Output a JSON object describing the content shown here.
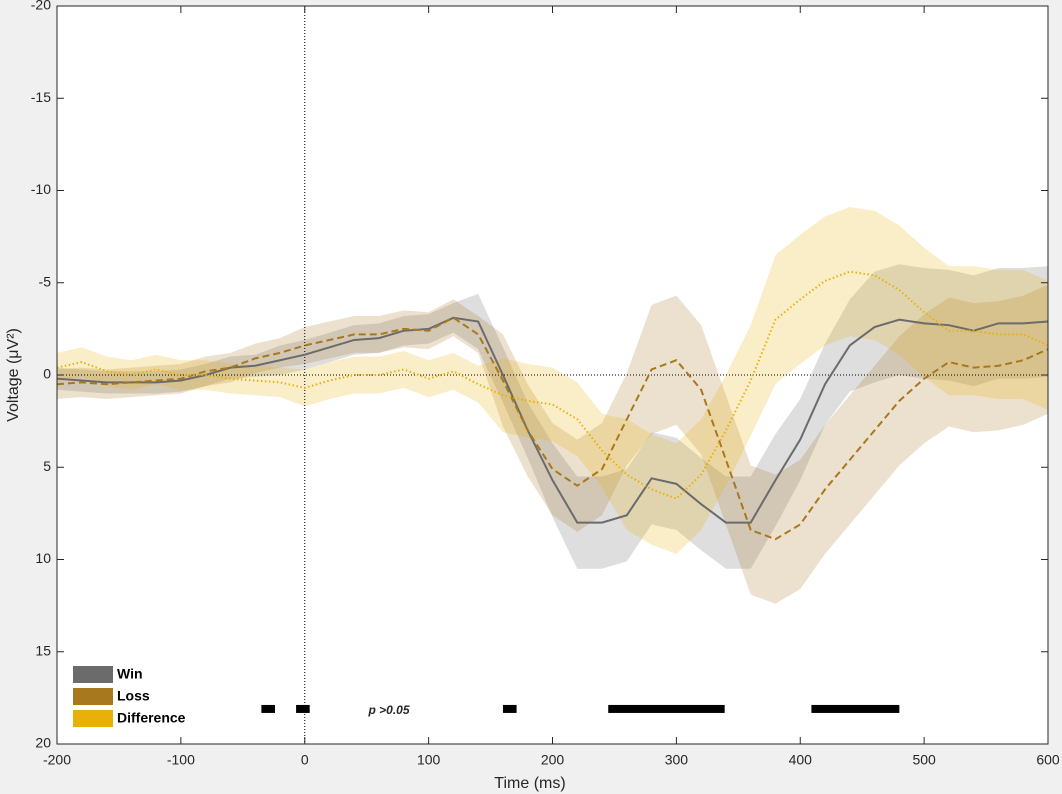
{
  "chart_data": {
    "type": "line",
    "xlabel": "Time (ms)",
    "ylabel": "Voltage (μV²)",
    "xlim": [
      -200,
      600
    ],
    "ylim": [
      20,
      -20
    ],
    "xticks": [
      -200,
      -100,
      0,
      100,
      200,
      300,
      400,
      500,
      600
    ],
    "yticks": [
      -20,
      -15,
      -10,
      -5,
      0,
      5,
      10,
      15,
      20
    ],
    "legend": "lower-left",
    "vlines": [
      0
    ],
    "hlines": [
      0
    ],
    "x": [
      -200,
      -180,
      -160,
      -140,
      -120,
      -100,
      -80,
      -60,
      -40,
      -20,
      0,
      20,
      40,
      60,
      80,
      100,
      120,
      140,
      160,
      180,
      200,
      220,
      240,
      260,
      280,
      300,
      320,
      340,
      360,
      380,
      400,
      420,
      440,
      460,
      480,
      500,
      520,
      540,
      560,
      580,
      600
    ],
    "series": [
      {
        "name": "Win",
        "color": "#6b6b6b",
        "dash": "solid",
        "values": [
          0.2,
          0.3,
          0.4,
          0.4,
          0.4,
          0.3,
          0,
          -0.4,
          -0.5,
          -0.8,
          -1.1,
          -1.5,
          -1.9,
          -2.0,
          -2.4,
          -2.5,
          -3.1,
          -2.9,
          0,
          3,
          5.7,
          8.0,
          8.0,
          7.6,
          5.6,
          5.9,
          7.0,
          8.0,
          8.0,
          5.7,
          3.5,
          0.5,
          -1.6,
          -2.6,
          -3.0,
          -2.8,
          -2.7,
          -2.4,
          -2.8,
          -2.8,
          -2.9
        ],
        "band_low": [
          -0.4,
          -0.3,
          -0.2,
          -0.2,
          -0.2,
          -0.3,
          -0.6,
          -1.0,
          -1.1,
          -1.6,
          -1.9,
          -2.3,
          -2.7,
          -2.8,
          -3.2,
          -3.3,
          -3.9,
          -4.4,
          -1.5,
          1.5,
          3.7,
          5.5,
          5.5,
          5.1,
          3.1,
          3.4,
          4.5,
          5.5,
          5.5,
          3.2,
          1.3,
          -1.7,
          -4.1,
          -5.6,
          -6.0,
          -5.8,
          -5.7,
          -5.4,
          -5.8,
          -5.8,
          -5.9
        ],
        "band_high": [
          0.8,
          0.9,
          1.0,
          1.0,
          1.0,
          0.9,
          0.6,
          0.2,
          0.1,
          0.0,
          -0.3,
          -0.7,
          -1.1,
          -1.2,
          -1.6,
          -1.7,
          -2.3,
          -1.4,
          1.5,
          4.5,
          7.7,
          10.5,
          10.5,
          10.1,
          8.1,
          8.4,
          9.5,
          10.5,
          10.5,
          8.2,
          5.7,
          2.7,
          0.9,
          0.4,
          0,
          0.2,
          0.3,
          0.6,
          0.2,
          0.2,
          0.1
        ]
      },
      {
        "name": "Loss",
        "color": "#a8781e",
        "dash": "dashed",
        "values": [
          0.5,
          0.4,
          0.5,
          0.4,
          0.3,
          0.2,
          -0.2,
          -0.4,
          -0.9,
          -1.2,
          -1.6,
          -1.9,
          -2.2,
          -2.2,
          -2.5,
          -2.4,
          -3.1,
          -2.2,
          0.3,
          3,
          5.1,
          6.0,
          5.1,
          2.4,
          -0.3,
          -0.8,
          0.8,
          4.6,
          8.4,
          8.9,
          8.1,
          6.2,
          4.6,
          3.0,
          1.4,
          0.2,
          -0.7,
          -0.4,
          -0.5,
          -0.8,
          -1.4
        ],
        "band_low": [
          -0.3,
          -0.4,
          -0.3,
          -0.4,
          -0.5,
          -0.6,
          -1.0,
          -1.2,
          -1.7,
          -2.0,
          -2.6,
          -2.9,
          -3.2,
          -3.2,
          -3.5,
          -3.4,
          -4.1,
          -3.2,
          -2.2,
          0.5,
          2.6,
          3.5,
          2.6,
          -0.1,
          -3.8,
          -4.3,
          -2.7,
          1.1,
          4.9,
          5.4,
          4.6,
          2.7,
          1.1,
          -0.5,
          -2.1,
          -3.3,
          -4.2,
          -3.9,
          -4.0,
          -4.3,
          -4.9
        ],
        "band_high": [
          1.3,
          1.2,
          1.3,
          1.2,
          1.1,
          1.0,
          0.6,
          0.4,
          -0.1,
          -0.4,
          -0.6,
          -0.9,
          -1.2,
          -1.2,
          -1.5,
          -1.4,
          -2.1,
          -1.2,
          2.8,
          5.5,
          7.6,
          8.5,
          7.6,
          4.9,
          3.2,
          2.7,
          4.3,
          8.1,
          11.9,
          12.4,
          11.6,
          9.7,
          8.1,
          6.5,
          4.9,
          3.7,
          2.8,
          3.1,
          3.0,
          2.7,
          2.1
        ]
      },
      {
        "name": "Difference",
        "color": "#e8b00a",
        "dash": "dotted",
        "values": [
          -0.4,
          -0.7,
          -0.2,
          0,
          -0.3,
          0,
          0,
          0.2,
          0.3,
          0.4,
          0.7,
          0.3,
          0,
          0,
          -0.3,
          0.2,
          -0.2,
          0.5,
          1.1,
          1.4,
          1.6,
          2.4,
          4.1,
          5.4,
          6.2,
          6.7,
          5.4,
          3.0,
          0.3,
          -3.0,
          -4.1,
          -5.1,
          -5.6,
          -5.4,
          -4.6,
          -3.4,
          -2.4,
          -2.4,
          -2.2,
          -2.2,
          -1.6
        ],
        "band_low": [
          -1.2,
          -1.5,
          -1.0,
          -0.8,
          -1.1,
          -0.8,
          -0.8,
          -0.6,
          -0.5,
          -0.4,
          -0.3,
          -0.7,
          -1.0,
          -1.0,
          -1.3,
          -0.8,
          -1.2,
          -0.5,
          -0.9,
          -0.6,
          -0.4,
          0.4,
          2.1,
          2.4,
          3.2,
          3.7,
          2.4,
          0,
          -2.7,
          -6.5,
          -7.6,
          -8.6,
          -9.1,
          -8.9,
          -8.1,
          -6.9,
          -5.9,
          -5.9,
          -5.7,
          -5.7,
          -5.1
        ],
        "band_high": [
          0.4,
          0.1,
          0.6,
          0.8,
          0.5,
          0.8,
          0.8,
          1.0,
          1.1,
          1.2,
          1.7,
          1.3,
          1.0,
          1.0,
          0.7,
          1.2,
          0.8,
          1.5,
          3.1,
          3.4,
          3.6,
          4.4,
          6.1,
          8.4,
          9.2,
          9.7,
          8.4,
          6.0,
          3.3,
          0.5,
          -0.6,
          -1.6,
          -2.1,
          -1.9,
          -1.1,
          0.1,
          1.1,
          1.1,
          1.3,
          1.3,
          1.9
        ]
      }
    ],
    "significance": {
      "y": 18.1,
      "intervals": [
        [
          -35,
          -24
        ],
        [
          -7,
          4
        ],
        [
          160,
          171
        ],
        [
          245,
          339
        ],
        [
          409,
          480
        ]
      ]
    },
    "annotations": [
      {
        "text": "p >0.05",
        "x": 68,
        "y": 18.2
      }
    ]
  }
}
